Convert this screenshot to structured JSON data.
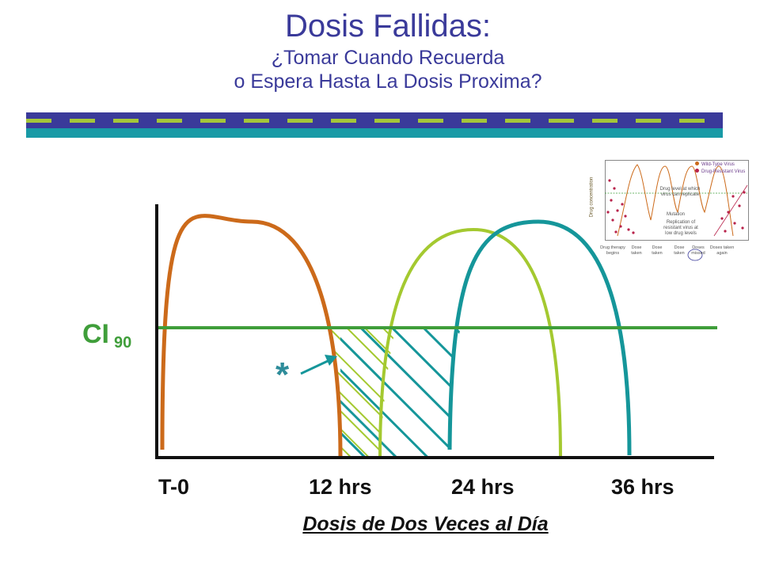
{
  "header": {
    "title": "Dosis Fallidas:",
    "subtitle_line1": "¿Tomar Cuando Recuerda",
    "subtitle_line2": "o Espera Hasta La Dosis Proxima?"
  },
  "diagram": {
    "threshold_label": "CI",
    "threshold_subscript": "90",
    "marker_symbol": "*",
    "x_ticks": [
      "T-0",
      "12 hrs",
      "24 hrs",
      "36 hrs"
    ],
    "x_label": "Dosis de Dos Veces al Día",
    "colors": {
      "curve_dose1": "#cc6a1a",
      "curve_dose_late": "#a4c930",
      "curve_dose_skipped": "#15969a",
      "threshold_line": "#3f9e3a",
      "axis": "#111111"
    }
  },
  "inset": {
    "legend": [
      "Wild-Type Virus",
      "Drug-Resistant Virus"
    ],
    "note_level": "Drug level at which virus can replicate",
    "note_resistance": "Mutation",
    "note_resistance2": "Replication of resistant virus at low drug levels",
    "y_label": "Drug concentration",
    "events": [
      {
        "line1": "Drug therapy",
        "line2": "begins"
      },
      {
        "line1": "Dose",
        "line2": "taken"
      },
      {
        "line1": "Dose",
        "line2": "taken"
      },
      {
        "line1": "Dose",
        "line2": "taken"
      },
      {
        "line1": "Doses",
        "line2": "missed"
      },
      {
        "line1": "Doses taken",
        "line2": "again"
      }
    ]
  }
}
